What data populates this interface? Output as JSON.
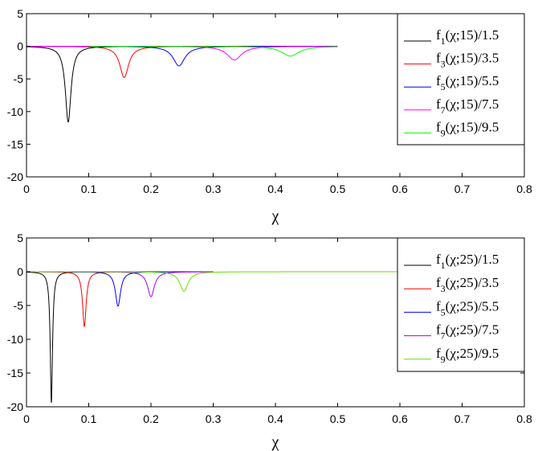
{
  "chart_data": [
    {
      "type": "line",
      "xlabel": "χ",
      "ylabel": "",
      "xlim": [
        0,
        0.8
      ],
      "ylim": [
        -20,
        5
      ],
      "xticks": [
        "0",
        "0.1",
        "0.2",
        "0.3",
        "0.4",
        "0.5",
        "0.6",
        "0.7",
        "0.8"
      ],
      "yticks": [
        "5",
        "0",
        "-5",
        "-10",
        "-15",
        "-20"
      ],
      "grid": false,
      "legend_position": "top-right",
      "series": [
        {
          "name": "f_1(χ;15)/1.5",
          "color": "#000000",
          "center": 0.067,
          "min": -11.6,
          "width": 0.0055,
          "support": [
            0.0,
            0.5
          ]
        },
        {
          "name": "f_3(χ;15)/3.5",
          "color": "#ff0000",
          "center": 0.157,
          "min": -4.8,
          "width": 0.0085,
          "support": [
            0.0,
            0.5
          ]
        },
        {
          "name": "f_5(χ;15)/5.5",
          "color": "#0000ff",
          "center": 0.245,
          "min": -3.0,
          "width": 0.0115,
          "support": [
            0.0,
            0.5
          ]
        },
        {
          "name": "f_7(χ;15)/7.5",
          "color": "#ff00ff",
          "center": 0.334,
          "min": -2.1,
          "width": 0.014,
          "support": [
            0.0,
            0.5
          ]
        },
        {
          "name": "f_9(χ;15)/9.5",
          "color": "#00ff00",
          "center": 0.424,
          "min": -1.5,
          "width": 0.017,
          "support": [
            0.1,
            0.5
          ]
        }
      ]
    },
    {
      "type": "line",
      "xlabel": "χ",
      "ylabel": "",
      "xlim": [
        0,
        0.8
      ],
      "ylim": [
        -20,
        5
      ],
      "xticks": [
        "0",
        "0.1",
        "0.2",
        "0.3",
        "0.4",
        "0.5",
        "0.6",
        "0.7",
        "0.8"
      ],
      "yticks": [
        "5",
        "0",
        "-5",
        "-10",
        "-15",
        "-20"
      ],
      "grid": false,
      "legend_position": "top-right",
      "series": [
        {
          "name": "f_1(χ;25)/1.5",
          "color": "#000000",
          "center": 0.04,
          "min": -19.4,
          "width": 0.0022,
          "support": [
            0.0,
            0.3
          ]
        },
        {
          "name": "f_3(χ;25)/3.5",
          "color": "#ff0000",
          "center": 0.093,
          "min": -8.1,
          "width": 0.0035,
          "support": [
            0.0,
            0.3
          ]
        },
        {
          "name": "f_5(χ;25)/5.5",
          "color": "#0000ff",
          "center": 0.147,
          "min": -5.1,
          "width": 0.005,
          "support": [
            0.0,
            0.3
          ]
        },
        {
          "name": "f_7(χ;25)/7.5",
          "color": "#aa00ee",
          "center": 0.2,
          "min": -3.7,
          "width": 0.0065,
          "support": [
            0.0,
            0.3
          ]
        },
        {
          "name": "f_9(χ;25)/9.5",
          "color": "#66dd00",
          "center": 0.253,
          "min": -2.9,
          "width": 0.008,
          "support": [
            0.0,
            0.8
          ]
        }
      ]
    }
  ]
}
